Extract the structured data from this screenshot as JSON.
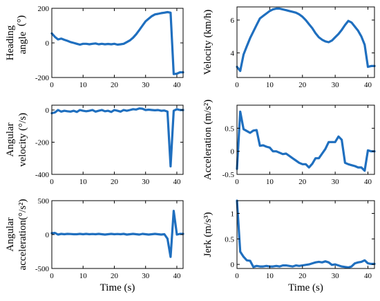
{
  "chart_data": [
    {
      "type": "line",
      "ylabel_lines": [
        "Heading",
        "angle"
      ],
      "yunit": "(°)",
      "xlabel": "",
      "xlim": [
        0,
        42
      ],
      "ylim": [
        -200,
        200
      ],
      "xticks": [
        0,
        10,
        20,
        30,
        40
      ],
      "yticks": [
        -200,
        0,
        200
      ],
      "ytick_labels": [
        "-200",
        "0",
        "200"
      ],
      "x": [
        0,
        1,
        2,
        3,
        4,
        5,
        6,
        7,
        8,
        9,
        10,
        11,
        12,
        13,
        14,
        15,
        16,
        17,
        18,
        19,
        20,
        21,
        22,
        23,
        24,
        25,
        26,
        27,
        28,
        29,
        30,
        31,
        32,
        33,
        34,
        35,
        36,
        37,
        38,
        39,
        40,
        41,
        42
      ],
      "y": [
        55,
        35,
        20,
        25,
        18,
        12,
        5,
        0,
        -5,
        -10,
        -5,
        -5,
        -8,
        -5,
        -3,
        -8,
        -5,
        -8,
        -6,
        -8,
        -5,
        -10,
        -8,
        -5,
        5,
        15,
        30,
        50,
        75,
        100,
        125,
        140,
        155,
        165,
        168,
        172,
        175,
        178,
        175,
        -180,
        -178,
        -170,
        -170
      ]
    },
    {
      "type": "line",
      "ylabel_lines": [
        "Velocity (km/h)"
      ],
      "xlabel": "",
      "xlim": [
        0,
        42
      ],
      "ylim": [
        2.5,
        6.8
      ],
      "xticks": [
        0,
        10,
        20,
        30,
        40
      ],
      "yticks": [
        4,
        6
      ],
      "ytick_labels": [
        "4",
        "6"
      ],
      "x": [
        0,
        1,
        2,
        3,
        4,
        5,
        6,
        7,
        8,
        9,
        10,
        11,
        12,
        13,
        14,
        15,
        16,
        17,
        18,
        19,
        20,
        21,
        22,
        23,
        24,
        25,
        26,
        27,
        28,
        29,
        30,
        31,
        32,
        33,
        34,
        35,
        36,
        37,
        38,
        39,
        40,
        41,
        42
      ],
      "y": [
        3.15,
        2.9,
        3.9,
        4.4,
        4.9,
        5.3,
        5.7,
        6.1,
        6.25,
        6.4,
        6.55,
        6.65,
        6.7,
        6.7,
        6.65,
        6.6,
        6.55,
        6.5,
        6.45,
        6.35,
        6.2,
        6.0,
        5.75,
        5.5,
        5.2,
        4.95,
        4.8,
        4.7,
        4.65,
        4.75,
        4.95,
        5.15,
        5.4,
        5.7,
        5.95,
        5.85,
        5.6,
        5.35,
        5.0,
        4.5,
        3.15,
        3.2,
        3.2
      ]
    },
    {
      "type": "line",
      "ylabel_lines": [
        "Angular",
        "velocity (°/s)"
      ],
      "xlabel": "",
      "xlim": [
        0,
        42
      ],
      "ylim": [
        -400,
        30
      ],
      "xticks": [
        0,
        10,
        20,
        30,
        40
      ],
      "yticks": [
        -400,
        -200,
        0
      ],
      "ytick_labels": [
        "-400",
        "-200",
        "0"
      ],
      "x": [
        0,
        1,
        2,
        3,
        4,
        5,
        6,
        7,
        8,
        9,
        10,
        11,
        12,
        13,
        14,
        15,
        16,
        17,
        18,
        19,
        20,
        21,
        22,
        23,
        24,
        25,
        26,
        27,
        28,
        29,
        30,
        31,
        32,
        33,
        34,
        35,
        36,
        37,
        38,
        39,
        40,
        41,
        42
      ],
      "y": [
        -20,
        -15,
        0,
        -10,
        -5,
        -8,
        -10,
        -5,
        -12,
        0,
        -5,
        -8,
        -5,
        0,
        -10,
        -5,
        0,
        -8,
        -5,
        -12,
        0,
        -5,
        -10,
        0,
        -5,
        0,
        5,
        3,
        10,
        8,
        0,
        2,
        0,
        -2,
        0,
        -5,
        -3,
        -10,
        -350,
        -5,
        5,
        0,
        0
      ]
    },
    {
      "type": "line",
      "ylabel_lines": [
        "Acceleration (m/s²)"
      ],
      "xlabel": "",
      "xlim": [
        0,
        42
      ],
      "ylim": [
        -0.5,
        1.0
      ],
      "xticks": [
        0,
        10,
        20,
        30,
        40
      ],
      "yticks": [
        -0.5,
        0,
        0.5
      ],
      "ytick_labels": [
        "-0.5",
        "0",
        "0.5"
      ],
      "x": [
        0,
        1,
        2,
        3,
        4,
        5,
        6,
        7,
        8,
        9,
        10,
        11,
        12,
        13,
        14,
        15,
        16,
        17,
        18,
        19,
        20,
        21,
        22,
        23,
        24,
        25,
        26,
        27,
        28,
        29,
        30,
        31,
        32,
        33,
        34,
        35,
        36,
        37,
        38,
        39,
        40,
        41,
        42
      ],
      "y": [
        -0.38,
        0.86,
        0.48,
        0.44,
        0.4,
        0.45,
        0.46,
        0.12,
        0.13,
        0.1,
        0.08,
        0.0,
        0.0,
        -0.03,
        -0.06,
        -0.05,
        -0.1,
        -0.15,
        -0.2,
        -0.25,
        -0.28,
        -0.28,
        -0.35,
        -0.27,
        -0.15,
        -0.15,
        -0.05,
        0.05,
        0.2,
        0.2,
        0.2,
        0.32,
        0.25,
        -0.25,
        -0.28,
        -0.3,
        -0.32,
        -0.35,
        -0.35,
        -0.42,
        0.02,
        0.0,
        0.0
      ]
    },
    {
      "type": "line",
      "ylabel_lines": [
        "Angular",
        "acceleration(°/s²)"
      ],
      "xlabel": "Time (s)",
      "xlim": [
        0,
        42
      ],
      "ylim": [
        -500,
        500
      ],
      "xticks": [
        0,
        10,
        20,
        30,
        40
      ],
      "yticks": [
        -500,
        0,
        500
      ],
      "ytick_labels": [
        "-500",
        "0",
        "500"
      ],
      "x": [
        0,
        1,
        2,
        3,
        4,
        5,
        6,
        7,
        8,
        9,
        10,
        11,
        12,
        13,
        14,
        15,
        16,
        17,
        18,
        19,
        20,
        21,
        22,
        23,
        24,
        25,
        26,
        27,
        28,
        29,
        30,
        31,
        32,
        33,
        34,
        35,
        36,
        37,
        38,
        39,
        40,
        41,
        42
      ],
      "y": [
        20,
        25,
        0,
        10,
        5,
        10,
        8,
        5,
        5,
        10,
        5,
        10,
        5,
        8,
        5,
        10,
        5,
        0,
        5,
        10,
        5,
        8,
        5,
        10,
        0,
        5,
        10,
        5,
        0,
        10,
        5,
        0,
        5,
        10,
        5,
        0,
        5,
        -60,
        -330,
        350,
        0,
        10,
        10
      ]
    },
    {
      "type": "line",
      "ylabel_lines": [
        "Jerk (m/s³)"
      ],
      "xlabel": "Time (s)",
      "xlim": [
        0,
        42
      ],
      "ylim": [
        -0.08,
        1.25
      ],
      "xticks": [
        0,
        10,
        20,
        30,
        40
      ],
      "yticks": [
        0,
        0.5,
        1
      ],
      "ytick_labels": [
        "0",
        "0.5",
        "1"
      ],
      "x": [
        0,
        1,
        2,
        3,
        4,
        5,
        6,
        7,
        8,
        9,
        10,
        11,
        12,
        13,
        14,
        15,
        16,
        17,
        18,
        19,
        20,
        21,
        22,
        23,
        24,
        25,
        26,
        27,
        28,
        29,
        30,
        31,
        32,
        33,
        34,
        35,
        36,
        37,
        38,
        39,
        40,
        41,
        42
      ],
      "y": [
        1.25,
        0.25,
        0.15,
        0.08,
        0.07,
        -0.05,
        -0.03,
        -0.04,
        -0.04,
        -0.03,
        -0.04,
        -0.04,
        -0.03,
        -0.04,
        -0.02,
        -0.02,
        -0.03,
        -0.04,
        -0.02,
        -0.03,
        -0.02,
        -0.01,
        0.0,
        0.02,
        0.04,
        0.05,
        0.04,
        0.06,
        0.04,
        -0.01,
        0.0,
        -0.02,
        -0.04,
        -0.05,
        -0.06,
        -0.04,
        0.02,
        0.04,
        0.05,
        0.08,
        0.02,
        0.01,
        0.01
      ]
    }
  ]
}
